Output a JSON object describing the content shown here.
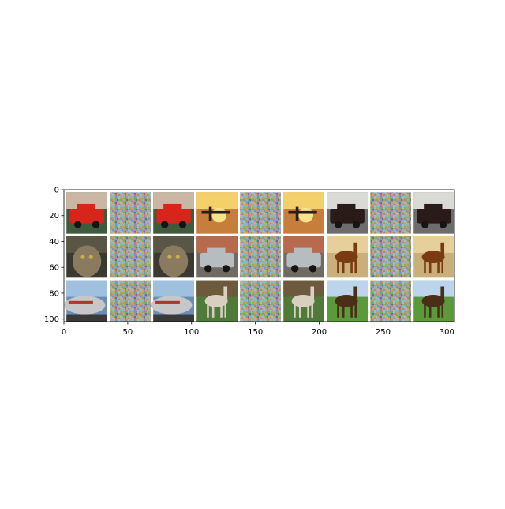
{
  "chart_data": {
    "type": "image-grid",
    "title": "",
    "xlabel": "",
    "ylabel": "",
    "xlim": [
      0,
      306
    ],
    "ylim": [
      102,
      0
    ],
    "y_axis_inverted": true,
    "grid": false,
    "legend": "none",
    "x_ticks": [
      0,
      50,
      100,
      150,
      200,
      250,
      300
    ],
    "x_tick_labels": [
      "0",
      "50",
      "100",
      "150",
      "200",
      "250",
      "300"
    ],
    "y_ticks": [
      0,
      20,
      40,
      60,
      80,
      100
    ],
    "y_tick_labels": [
      "0",
      "20",
      "40",
      "60",
      "80",
      "100"
    ],
    "grid_rows": 3,
    "grid_cols": 9,
    "tile_size": 32,
    "tile_padding": 2,
    "separator_color": "#ffffff",
    "tiles": [
      [
        "red-car",
        "noise",
        "red-car",
        "biplane-sunset",
        "noise",
        "biplane-sunset",
        "dark-car",
        "noise",
        "dark-car"
      ],
      [
        "cat",
        "noise",
        "cat",
        "silver-car",
        "noise",
        "silver-car",
        "brown-horse",
        "noise",
        "brown-horse"
      ],
      [
        "airplane",
        "noise",
        "airplane",
        "white-horse",
        "noise",
        "white-horse",
        "dark-horse",
        "noise",
        "dark-horse"
      ]
    ],
    "tile_colors": {
      "red-car": {
        "bg": "#3f5a3c",
        "sky": "#c9b6a4",
        "fg": "#d8251c"
      },
      "biplane-sunset": {
        "bg": "#c77d3c",
        "sky": "#f3d06a",
        "fg": "#2a1f18"
      },
      "dark-car": {
        "bg": "#6d6d6d",
        "sky": "#d9d9d6",
        "fg": "#2a1a18"
      },
      "cat": {
        "bg": "#3b3a32",
        "sky": "#5a5646",
        "fg": "#8a7a60"
      },
      "silver-car": {
        "bg": "#6f6a62",
        "sky": "#b86b4c",
        "fg": "#b7bcc0"
      },
      "brown-horse": {
        "bg": "#c9b07a",
        "sky": "#e6cf9a",
        "fg": "#7a3a14"
      },
      "airplane": {
        "bg": "#6b8db5",
        "sky": "#9fc0df",
        "fg": "#c7c7c9"
      },
      "white-horse": {
        "bg": "#4f7a3a",
        "sky": "#6d5a3c",
        "fg": "#d8cfc0"
      },
      "dark-horse": {
        "bg": "#5a9a3a",
        "sky": "#bcd4ec",
        "fg": "#4a2e18"
      }
    }
  }
}
